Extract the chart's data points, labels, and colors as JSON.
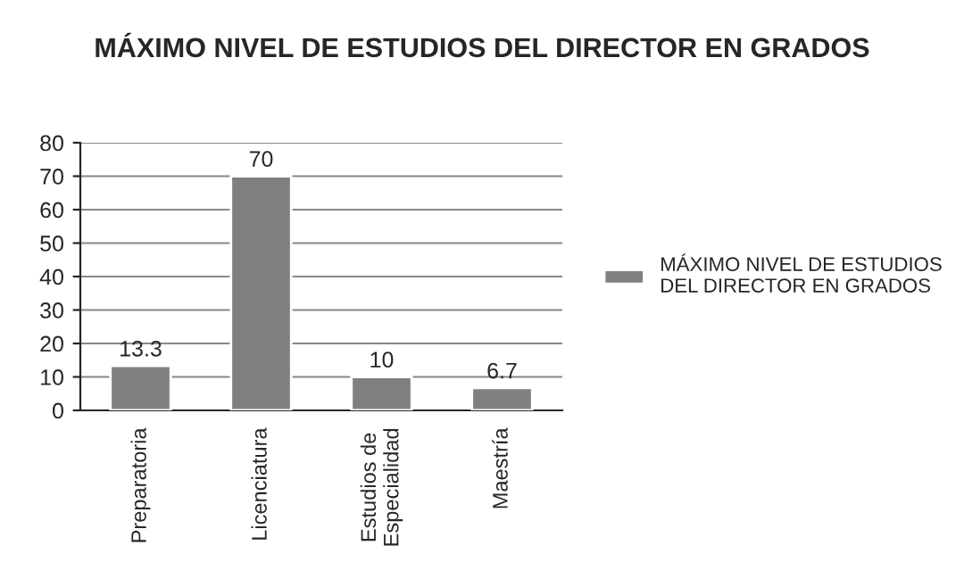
{
  "chart_data": {
    "type": "bar",
    "title": "MÁXIMO NIVEL DE ESTUDIOS DEL DIRECTOR EN GRADOS",
    "categories": [
      "Preparatoria",
      "Licenciatura",
      "Estudios de\nEspecialidad",
      "Maestría"
    ],
    "series": [
      {
        "name": "MÁXIMO NIVEL DE ESTUDIOS\nDEL DIRECTOR EN GRADOS",
        "color": "#808080",
        "values": [
          13.3,
          70,
          10,
          6.7
        ]
      }
    ],
    "ylim": [
      0,
      80
    ],
    "yticks": [
      0,
      10,
      20,
      30,
      40,
      50,
      60,
      70,
      80
    ],
    "grid": "y",
    "legend": "right",
    "data_labels": true
  }
}
